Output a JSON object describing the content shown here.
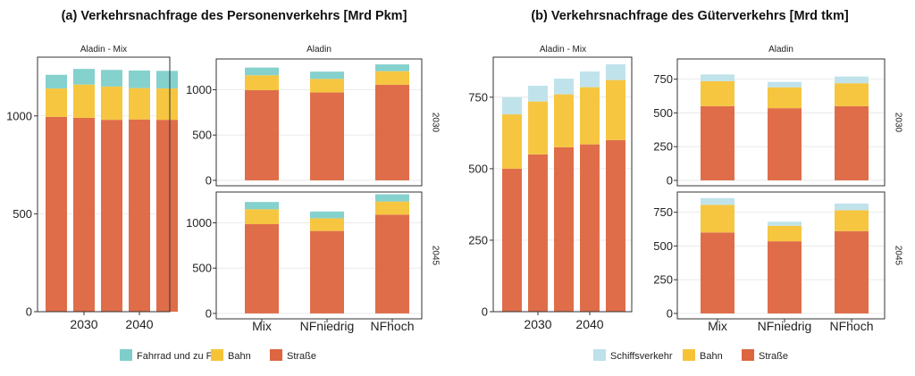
{
  "colors": {
    "strasse": "#DD6540",
    "bahn": "#F6C337",
    "fahrrad": "#7ECFCB",
    "schiff": "#BDE2EA",
    "panel_bg": "#FFFFFF",
    "grid": "#E6E6E6",
    "border": "#333333"
  },
  "chart_data": [
    {
      "type": "bar",
      "title": "(a) Verkehrsnachfrage des Personenverkehrs [Mrd Pkm]",
      "stacked": true,
      "legend": [
        {
          "key": "fahrrad",
          "label": "Fahrrad und zu Fuß"
        },
        {
          "key": "bahn",
          "label": "Bahn"
        },
        {
          "key": "strasse",
          "label": "Straße"
        }
      ],
      "legend_position": "bottom",
      "panels": [
        {
          "strip": "Aladin - Mix",
          "x_type": "years",
          "x": [
            2025,
            2030,
            2035,
            2040,
            2045
          ],
          "xticks": [
            "2030",
            "2040"
          ],
          "ylim": [
            0,
            1300
          ],
          "yticks": [
            "0",
            "500",
            "1000"
          ],
          "series": [
            {
              "key": "strasse",
              "values": [
                995,
                990,
                980,
                982,
                980
              ]
            },
            {
              "key": "bahn",
              "values": [
                145,
                170,
                170,
                160,
                160
              ]
            },
            {
              "key": "fahrrad",
              "values": [
                70,
                80,
                85,
                90,
                90
              ]
            }
          ]
        },
        {
          "strip": "Aladin",
          "side": "2030",
          "x": [
            "Mix",
            "NFniedrig",
            "NFhoch"
          ],
          "ylim": [
            -60,
            1340
          ],
          "yticks": [
            "0",
            "500",
            "1000"
          ],
          "series": [
            {
              "key": "strasse",
              "values": [
                995,
                970,
                1055
              ]
            },
            {
              "key": "bahn",
              "values": [
                165,
                150,
                150
              ]
            },
            {
              "key": "fahrrad",
              "values": [
                85,
                80,
                75
              ]
            }
          ]
        },
        {
          "side": "2045",
          "x": [
            "Mix",
            "NFniedrig",
            "NFhoch"
          ],
          "ylim": [
            -60,
            1340
          ],
          "yticks": [
            "0",
            "500",
            "1000"
          ],
          "xticks": [
            "Mix",
            "NFniedrig",
            "NFhoch"
          ],
          "series": [
            {
              "key": "strasse",
              "values": [
                985,
                910,
                1090
              ]
            },
            {
              "key": "bahn",
              "values": [
                165,
                140,
                145
              ]
            },
            {
              "key": "fahrrad",
              "values": [
                80,
                75,
                80
              ]
            }
          ]
        }
      ]
    },
    {
      "type": "bar",
      "title": "(b) Verkehrsnachfrage des Güterverkehrs [Mrd tkm]",
      "stacked": true,
      "legend": [
        {
          "key": "schiff",
          "label": "Schiffsverkehr"
        },
        {
          "key": "bahn",
          "label": "Bahn"
        },
        {
          "key": "strasse",
          "label": "Straße"
        }
      ],
      "legend_position": "bottom",
      "panels": [
        {
          "strip": "Aladin - Mix",
          "x_type": "years",
          "x": [
            2025,
            2030,
            2035,
            2040,
            2045
          ],
          "xticks": [
            "2030",
            "2040"
          ],
          "ylim": [
            0,
            890
          ],
          "yticks": [
            "0",
            "250",
            "500",
            "750"
          ],
          "series": [
            {
              "key": "strasse",
              "values": [
                500,
                550,
                575,
                585,
                600
              ]
            },
            {
              "key": "bahn",
              "values": [
                190,
                185,
                185,
                200,
                210
              ]
            },
            {
              "key": "schiff",
              "values": [
                60,
                55,
                55,
                55,
                55
              ]
            }
          ]
        },
        {
          "strip": "Aladin",
          "side": "2030",
          "x": [
            "Mix",
            "NFniedrig",
            "NFhoch"
          ],
          "ylim": [
            -40,
            900
          ],
          "yticks": [
            "0",
            "250",
            "500",
            "750"
          ],
          "series": [
            {
              "key": "strasse",
              "values": [
                550,
                535,
                550
              ]
            },
            {
              "key": "bahn",
              "values": [
                185,
                155,
                170
              ]
            },
            {
              "key": "schiff",
              "values": [
                50,
                40,
                50
              ]
            }
          ]
        },
        {
          "side": "2045",
          "x": [
            "Mix",
            "NFniedrig",
            "NFhoch"
          ],
          "ylim": [
            -40,
            900
          ],
          "yticks": [
            "0",
            "250",
            "500",
            "750"
          ],
          "xticks": [
            "Mix",
            "NFniedrig",
            "NFhoch"
          ],
          "series": [
            {
              "key": "strasse",
              "values": [
                600,
                535,
                610
              ]
            },
            {
              "key": "bahn",
              "values": [
                205,
                115,
                155
              ]
            },
            {
              "key": "schiff",
              "values": [
                50,
                30,
                50
              ]
            }
          ]
        }
      ]
    }
  ]
}
